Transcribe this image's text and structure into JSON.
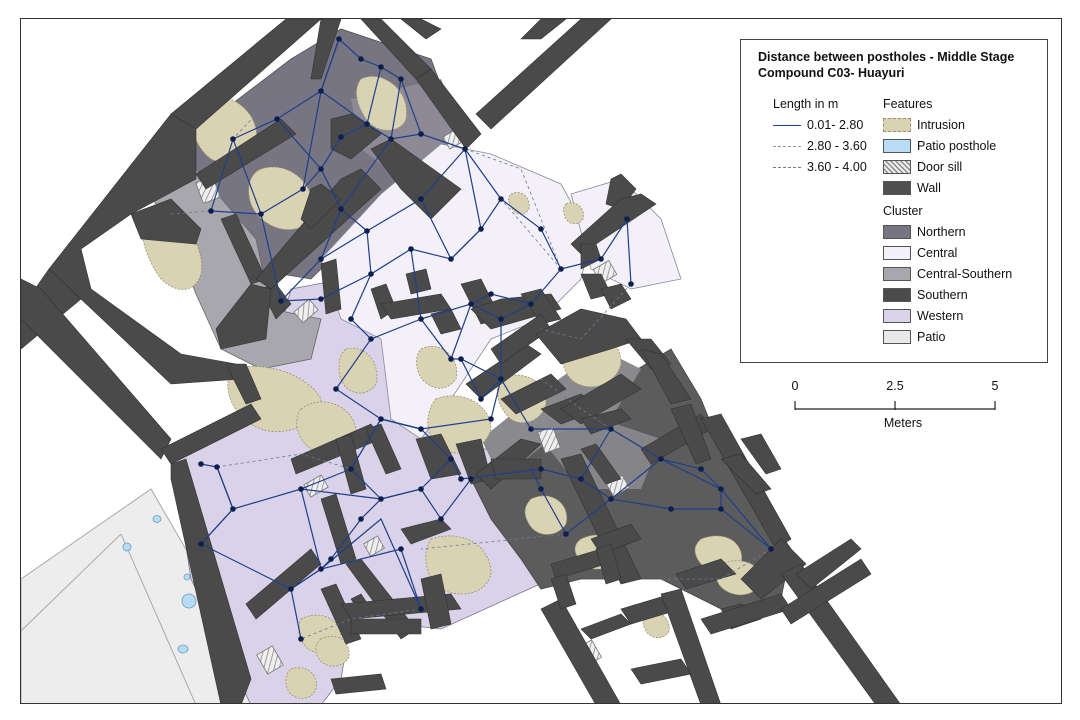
{
  "legend": {
    "title_line1": "Distance between postholes - Middle Stage",
    "title_line2": "Compound C03- Huayuri",
    "length_heading": "Length in m",
    "length_classes": [
      {
        "label": "0.01- 2.80",
        "style": "solid",
        "color": "#1f3f8a"
      },
      {
        "label": "2.80 - 3.60",
        "style": "dashed",
        "color": "#8a9bb8"
      },
      {
        "label": "3.60 - 4.00",
        "style": "dashed",
        "color": "#6a7a98"
      }
    ],
    "features_heading": "Features",
    "features": [
      {
        "label": "Intrusion",
        "color": "#d9d3b3",
        "icon": "intrusion-swatch"
      },
      {
        "label": "Patio posthole",
        "color": "#b8dcf5",
        "icon": "patio-posthole-swatch"
      },
      {
        "label": "Door sill",
        "color": "#e4e4e4",
        "icon": "door-sill-swatch"
      },
      {
        "label": "Wall",
        "color": "#505050",
        "icon": "wall-swatch"
      }
    ],
    "cluster_heading": "Cluster",
    "clusters": [
      {
        "label": "Northern",
        "color": "#777581"
      },
      {
        "label": "Central",
        "color": "#f3f0f9"
      },
      {
        "label": "Central-Southern",
        "color": "#a8a7ad"
      },
      {
        "label": "Southern",
        "color": "#4b4b4b"
      },
      {
        "label": "Western",
        "color": "#d9d2e9"
      },
      {
        "label": "Patio",
        "color": "#e8e8e8"
      }
    ]
  },
  "scale_bar": {
    "ticks": [
      "0",
      "2.5",
      "5"
    ],
    "units": "Meters"
  },
  "colors": {
    "wall": "#4a4a4a",
    "network_line": "#1f3f8a",
    "posthole_node": "#0d1f4f",
    "intrusion": "#d9d3b3",
    "patio_posthole": "#b8dcf5"
  }
}
